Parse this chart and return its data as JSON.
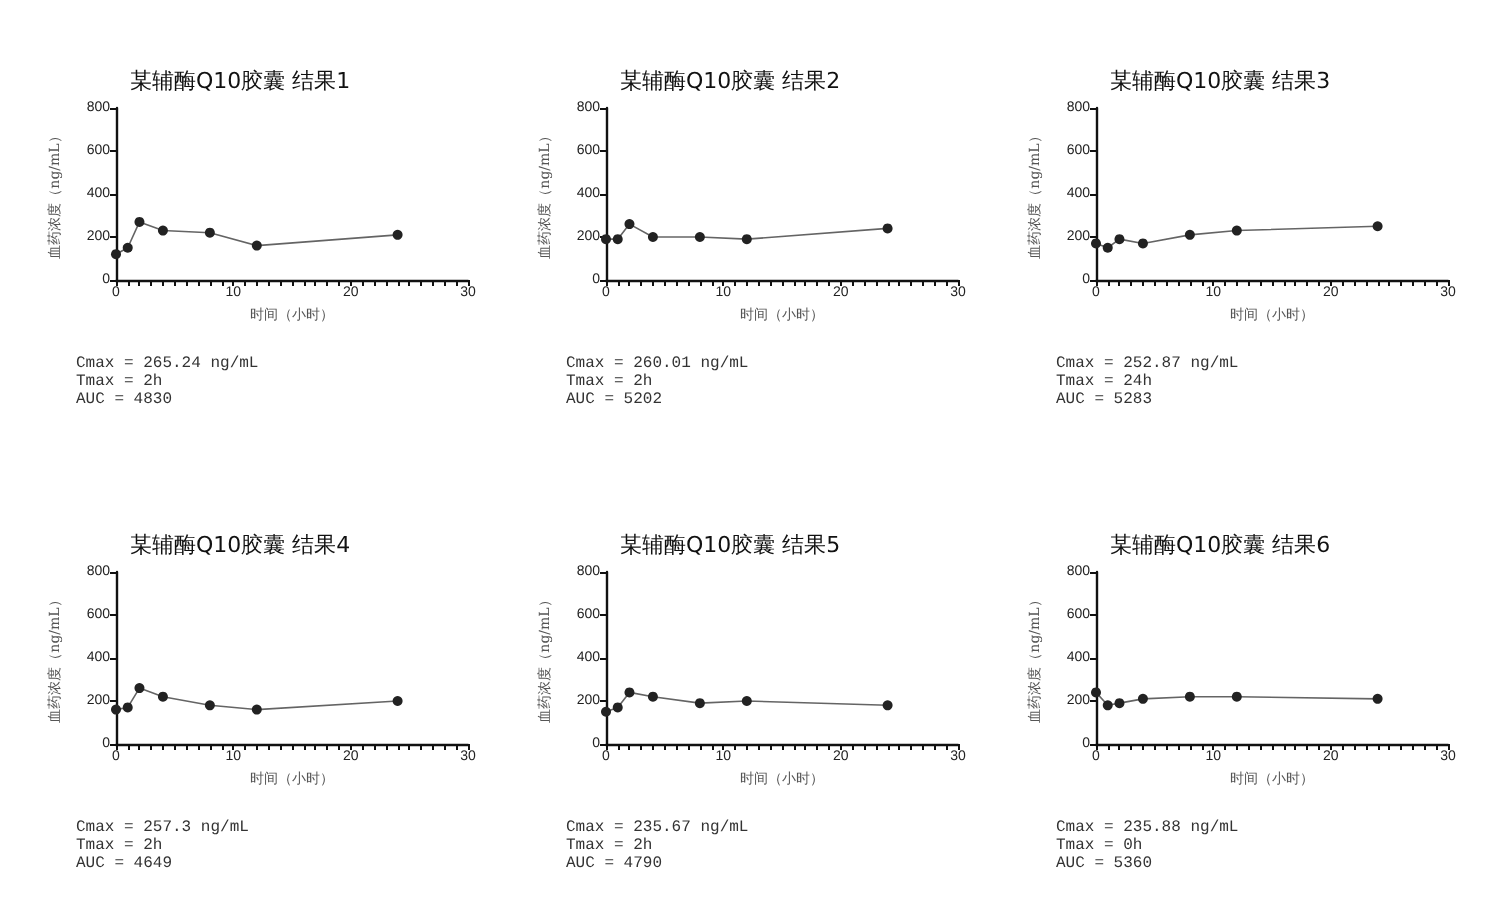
{
  "chart_data": [
    {
      "type": "line",
      "title": "某辅酶Q10胶囊 结果1",
      "xlabel": "时间（小时）",
      "ylabel": "血药浓度（ng/mL）",
      "x": [
        0,
        1,
        2,
        4,
        8,
        12,
        24
      ],
      "series": [
        {
          "color": "#222222",
          "values": [
            120,
            150,
            270,
            230,
            220,
            160,
            210
          ]
        }
      ],
      "xlim": [
        0,
        30
      ],
      "ylim": [
        0,
        800
      ],
      "xticks": [
        0,
        {
          "value": 1,
          "label": null
        },
        {
          "value": 2,
          "label": null
        },
        {
          "value": 3,
          "label": null
        },
        {
          "value": 4,
          "label": null
        },
        {
          "value": 5,
          "label": null
        },
        {
          "value": 6,
          "label": null
        },
        {
          "value": 7,
          "label": null
        },
        {
          "value": 8,
          "label": null
        },
        {
          "value": 9,
          "label": null
        },
        10,
        {
          "value": 11,
          "label": null
        },
        {
          "value": 12,
          "label": null
        },
        {
          "value": 13,
          "label": null
        },
        {
          "value": 14,
          "label": null
        },
        {
          "value": 15,
          "label": null
        },
        {
          "value": 16,
          "label": null
        },
        {
          "value": 17,
          "label": null
        },
        {
          "value": 18,
          "label": null
        },
        {
          "value": 19,
          "label": null
        },
        20,
        {
          "value": 21,
          "label": null
        },
        {
          "value": 22,
          "label": null
        },
        {
          "value": 23,
          "label": null
        },
        {
          "value": 24,
          "label": null
        },
        {
          "value": 25,
          "label": null
        },
        {
          "value": 26,
          "label": null
        },
        {
          "value": 27,
          "label": null
        },
        {
          "value": 28,
          "label": null
        },
        {
          "value": 29,
          "label": null
        },
        30
      ],
      "yticks": [
        0,
        200,
        400,
        600,
        800
      ],
      "grid": false,
      "marker": "circle",
      "line_style": "solid",
      "annotations": [
        "Cmax = 265.24 ng/mL",
        "Tmax = 2h",
        "AUC = 4830"
      ]
    },
    {
      "type": "line",
      "title": "某辅酶Q10胶囊 结果2",
      "xlabel": "时间（小时）",
      "ylabel": "血药浓度（ng/mL）",
      "x": [
        0,
        1,
        2,
        4,
        8,
        12,
        24
      ],
      "series": [
        {
          "color": "#222222",
          "values": [
            190,
            190,
            260,
            200,
            200,
            190,
            240
          ]
        }
      ],
      "xlim": [
        0,
        30
      ],
      "ylim": [
        0,
        800
      ],
      "xticks": [
        0,
        {
          "value": 1,
          "label": null
        },
        {
          "value": 2,
          "label": null
        },
        {
          "value": 3,
          "label": null
        },
        {
          "value": 4,
          "label": null
        },
        {
          "value": 5,
          "label": null
        },
        {
          "value": 6,
          "label": null
        },
        {
          "value": 7,
          "label": null
        },
        {
          "value": 8,
          "label": null
        },
        {
          "value": 9,
          "label": null
        },
        10,
        {
          "value": 11,
          "label": null
        },
        {
          "value": 12,
          "label": null
        },
        {
          "value": 13,
          "label": null
        },
        {
          "value": 14,
          "label": null
        },
        {
          "value": 15,
          "label": null
        },
        {
          "value": 16,
          "label": null
        },
        {
          "value": 17,
          "label": null
        },
        {
          "value": 18,
          "label": null
        },
        {
          "value": 19,
          "label": null
        },
        20,
        {
          "value": 21,
          "label": null
        },
        {
          "value": 22,
          "label": null
        },
        {
          "value": 23,
          "label": null
        },
        {
          "value": 24,
          "label": null
        },
        {
          "value": 25,
          "label": null
        },
        {
          "value": 26,
          "label": null
        },
        {
          "value": 27,
          "label": null
        },
        {
          "value": 28,
          "label": null
        },
        {
          "value": 29,
          "label": null
        },
        30
      ],
      "yticks": [
        0,
        200,
        400,
        600,
        800
      ],
      "grid": false,
      "marker": "circle",
      "line_style": "solid",
      "annotations": [
        "Cmax = 260.01 ng/mL",
        "Tmax = 2h",
        "AUC = 5202"
      ]
    },
    {
      "type": "line",
      "title": "某辅酶Q10胶囊 结果3",
      "xlabel": "时间（小时）",
      "ylabel": "血药浓度（ng/mL）",
      "x": [
        0,
        1,
        2,
        4,
        8,
        12,
        24
      ],
      "series": [
        {
          "color": "#222222",
          "values": [
            170,
            150,
            190,
            170,
            210,
            230,
            250
          ]
        }
      ],
      "xlim": [
        0,
        30
      ],
      "ylim": [
        0,
        800
      ],
      "xticks": [
        0,
        {
          "value": 1,
          "label": null
        },
        {
          "value": 2,
          "label": null
        },
        {
          "value": 3,
          "label": null
        },
        {
          "value": 4,
          "label": null
        },
        {
          "value": 5,
          "label": null
        },
        {
          "value": 6,
          "label": null
        },
        {
          "value": 7,
          "label": null
        },
        {
          "value": 8,
          "label": null
        },
        {
          "value": 9,
          "label": null
        },
        10,
        {
          "value": 11,
          "label": null
        },
        {
          "value": 12,
          "label": null
        },
        {
          "value": 13,
          "label": null
        },
        {
          "value": 14,
          "label": null
        },
        {
          "value": 15,
          "label": null
        },
        {
          "value": 16,
          "label": null
        },
        {
          "value": 17,
          "label": null
        },
        {
          "value": 18,
          "label": null
        },
        {
          "value": 19,
          "label": null
        },
        20,
        {
          "value": 21,
          "label": null
        },
        {
          "value": 22,
          "label": null
        },
        {
          "value": 23,
          "label": null
        },
        {
          "value": 24,
          "label": null
        },
        {
          "value": 25,
          "label": null
        },
        {
          "value": 26,
          "label": null
        },
        {
          "value": 27,
          "label": null
        },
        {
          "value": 28,
          "label": null
        },
        {
          "value": 29,
          "label": null
        },
        30
      ],
      "yticks": [
        0,
        200,
        400,
        600,
        800
      ],
      "grid": false,
      "marker": "circle",
      "line_style": "solid",
      "annotations": [
        "Cmax = 252.87 ng/mL",
        "Tmax = 24h",
        "AUC = 5283"
      ]
    },
    {
      "type": "line",
      "title": "某辅酶Q10胶囊 结果4",
      "xlabel": "时间（小时）",
      "ylabel": "血药浓度（ng/mL）",
      "x": [
        0,
        1,
        2,
        4,
        8,
        12,
        24
      ],
      "series": [
        {
          "color": "#222222",
          "values": [
            160,
            170,
            260,
            220,
            180,
            160,
            200
          ]
        }
      ],
      "xlim": [
        0,
        30
      ],
      "ylim": [
        0,
        800
      ],
      "xticks": [
        0,
        {
          "value": 1,
          "label": null
        },
        {
          "value": 2,
          "label": null
        },
        {
          "value": 3,
          "label": null
        },
        {
          "value": 4,
          "label": null
        },
        {
          "value": 5,
          "label": null
        },
        {
          "value": 6,
          "label": null
        },
        {
          "value": 7,
          "label": null
        },
        {
          "value": 8,
          "label": null
        },
        {
          "value": 9,
          "label": null
        },
        10,
        {
          "value": 11,
          "label": null
        },
        {
          "value": 12,
          "label": null
        },
        {
          "value": 13,
          "label": null
        },
        {
          "value": 14,
          "label": null
        },
        {
          "value": 15,
          "label": null
        },
        {
          "value": 16,
          "label": null
        },
        {
          "value": 17,
          "label": null
        },
        {
          "value": 18,
          "label": null
        },
        {
          "value": 19,
          "label": null
        },
        20,
        {
          "value": 21,
          "label": null
        },
        {
          "value": 22,
          "label": null
        },
        {
          "value": 23,
          "label": null
        },
        {
          "value": 24,
          "label": null
        },
        {
          "value": 25,
          "label": null
        },
        {
          "value": 26,
          "label": null
        },
        {
          "value": 27,
          "label": null
        },
        {
          "value": 28,
          "label": null
        },
        {
          "value": 29,
          "label": null
        },
        30
      ],
      "yticks": [
        0,
        200,
        400,
        600,
        800
      ],
      "grid": false,
      "marker": "circle",
      "line_style": "solid",
      "annotations": [
        "Cmax = 257.3 ng/mL",
        "Tmax = 2h",
        "AUC = 4649"
      ]
    },
    {
      "type": "line",
      "title": "某辅酶Q10胶囊 结果5",
      "xlabel": "时间（小时）",
      "ylabel": "血药浓度（ng/mL）",
      "x": [
        0,
        1,
        2,
        4,
        8,
        12,
        24
      ],
      "series": [
        {
          "color": "#222222",
          "values": [
            150,
            170,
            240,
            220,
            190,
            200,
            180
          ]
        }
      ],
      "xlim": [
        0,
        30
      ],
      "ylim": [
        0,
        800
      ],
      "xticks": [
        0,
        {
          "value": 1,
          "label": null
        },
        {
          "value": 2,
          "label": null
        },
        {
          "value": 3,
          "label": null
        },
        {
          "value": 4,
          "label": null
        },
        {
          "value": 5,
          "label": null
        },
        {
          "value": 6,
          "label": null
        },
        {
          "value": 7,
          "label": null
        },
        {
          "value": 8,
          "label": null
        },
        {
          "value": 9,
          "label": null
        },
        10,
        {
          "value": 11,
          "label": null
        },
        {
          "value": 12,
          "label": null
        },
        {
          "value": 13,
          "label": null
        },
        {
          "value": 14,
          "label": null
        },
        {
          "value": 15,
          "label": null
        },
        {
          "value": 16,
          "label": null
        },
        {
          "value": 17,
          "label": null
        },
        {
          "value": 18,
          "label": null
        },
        {
          "value": 19,
          "label": null
        },
        20,
        {
          "value": 21,
          "label": null
        },
        {
          "value": 22,
          "label": null
        },
        {
          "value": 23,
          "label": null
        },
        {
          "value": 24,
          "label": null
        },
        {
          "value": 25,
          "label": null
        },
        {
          "value": 26,
          "label": null
        },
        {
          "value": 27,
          "label": null
        },
        {
          "value": 28,
          "label": null
        },
        {
          "value": 29,
          "label": null
        },
        30
      ],
      "yticks": [
        0,
        200,
        400,
        600,
        800
      ],
      "grid": false,
      "marker": "circle",
      "line_style": "solid",
      "annotations": [
        "Cmax = 235.67 ng/mL",
        "Tmax = 2h",
        "AUC = 4790"
      ]
    },
    {
      "type": "line",
      "title": "某辅酶Q10胶囊 结果6",
      "xlabel": "时间（小时）",
      "ylabel": "血药浓度（ng/mL）",
      "x": [
        0,
        1,
        2,
        4,
        8,
        12,
        24
      ],
      "series": [
        {
          "color": "#222222",
          "values": [
            240,
            180,
            190,
            210,
            220,
            220,
            210
          ]
        }
      ],
      "xlim": [
        0,
        30
      ],
      "ylim": [
        0,
        800
      ],
      "xticks": [
        0,
        {
          "value": 1,
          "label": null
        },
        {
          "value": 2,
          "label": null
        },
        {
          "value": 3,
          "label": null
        },
        {
          "value": 4,
          "label": null
        },
        {
          "value": 5,
          "label": null
        },
        {
          "value": 6,
          "label": null
        },
        {
          "value": 7,
          "label": null
        },
        {
          "value": 8,
          "label": null
        },
        {
          "value": 9,
          "label": null
        },
        10,
        {
          "value": 11,
          "label": null
        },
        {
          "value": 12,
          "label": null
        },
        {
          "value": 13,
          "label": null
        },
        {
          "value": 14,
          "label": null
        },
        {
          "value": 15,
          "label": null
        },
        {
          "value": 16,
          "label": null
        },
        {
          "value": 17,
          "label": null
        },
        {
          "value": 18,
          "label": null
        },
        {
          "value": 19,
          "label": null
        },
        20,
        {
          "value": 21,
          "label": null
        },
        {
          "value": 22,
          "label": null
        },
        {
          "value": 23,
          "label": null
        },
        {
          "value": 24,
          "label": null
        },
        {
          "value": 25,
          "label": null
        },
        {
          "value": 26,
          "label": null
        },
        {
          "value": 27,
          "label": null
        },
        {
          "value": 28,
          "label": null
        },
        {
          "value": 29,
          "label": null
        },
        30
      ],
      "yticks": [
        0,
        200,
        400,
        600,
        800
      ],
      "grid": false,
      "marker": "circle",
      "line_style": "solid",
      "annotations": [
        "Cmax = 235.88 ng/mL",
        "Tmax = 0h",
        "AUC = 5360"
      ]
    }
  ]
}
